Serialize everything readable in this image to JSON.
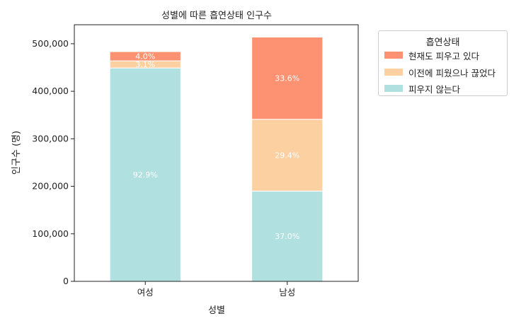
{
  "chart_data": {
    "type": "bar",
    "stacked": true,
    "title": "성별에 따른 흡연상태 인구수",
    "xlabel": "성별",
    "ylabel": "인구수 (명)",
    "categories": [
      "여성",
      "남성"
    ],
    "ylim": [
      0,
      540000
    ],
    "yticks": [
      0,
      100000,
      200000,
      300000,
      400000,
      500000
    ],
    "ytick_labels": [
      "0",
      "100,000",
      "200,000",
      "300,000",
      "400,000",
      "500,000"
    ],
    "series": [
      {
        "name": "피우지 않는다",
        "color": "#b0e0e0",
        "values": [
          449000,
          190000
        ],
        "labels": [
          "92.9%",
          "37.0%"
        ]
      },
      {
        "name": "이전에 피웠으나 끊었다",
        "color": "#fdd0a2",
        "values": [
          15000,
          151000
        ],
        "labels": [
          "3.1%",
          "29.4%"
        ]
      },
      {
        "name": "현재도 피우고 있다",
        "color": "#fc9272",
        "values": [
          19400,
          173000
        ],
        "labels": [
          "4.0%",
          "33.6%"
        ]
      }
    ],
    "legend": {
      "title": "흡연상태",
      "position": "upper-right-outside",
      "order": [
        "현재도 피우고 있다",
        "이전에 피웠으나 끊었다",
        "피우지 않는다"
      ]
    },
    "grid": false
  }
}
